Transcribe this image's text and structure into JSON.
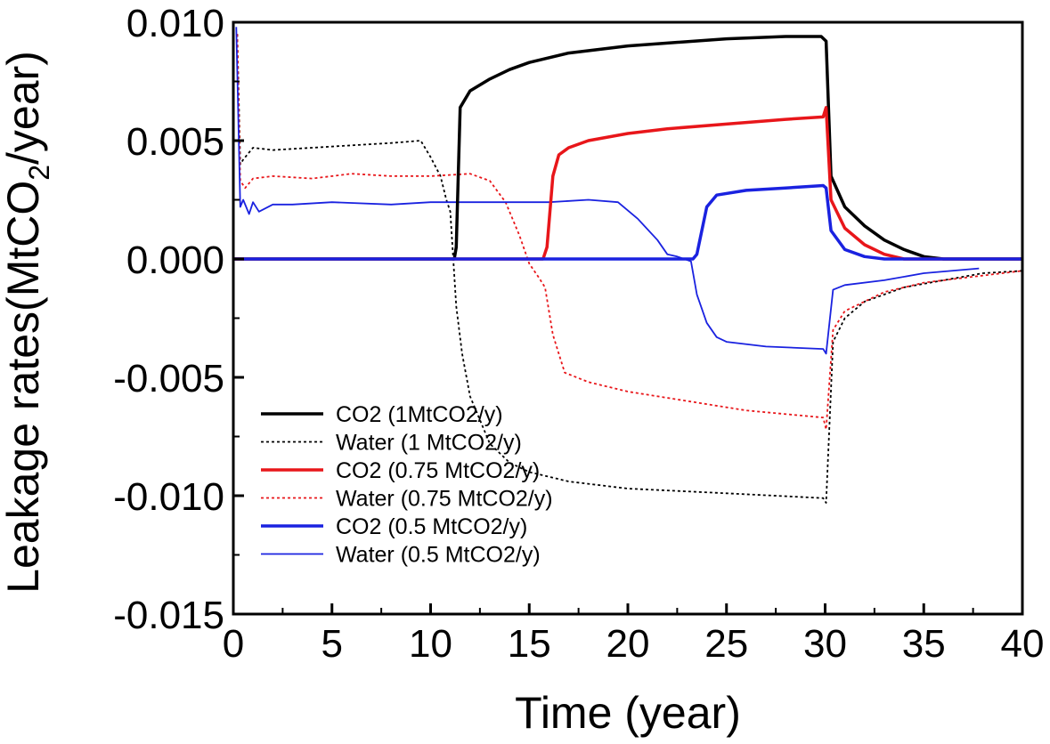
{
  "chart_data": {
    "type": "line",
    "title": "",
    "xlabel": "Time (year)",
    "ylabel_main": "Leakage rates(MtCO",
    "ylabel_sub": "2",
    "ylabel_tail": "/year)",
    "xlim": [
      0,
      40
    ],
    "ylim": [
      -0.015,
      0.01
    ],
    "x_ticks": [
      0,
      5,
      10,
      15,
      20,
      25,
      30,
      35,
      40
    ],
    "x_tick_labels": [
      "0",
      "5",
      "10",
      "15",
      "20",
      "25",
      "30",
      "35",
      "40"
    ],
    "y_ticks": [
      -0.015,
      -0.01,
      -0.005,
      0,
      0.005,
      0.01
    ],
    "y_tick_labels": [
      "-0.015",
      "-0.010",
      "-0.005",
      "0.000",
      "0.005",
      "0.010"
    ],
    "grid": false,
    "legend_position": "bottom-left",
    "series": [
      {
        "name": "CO2 (1MtCO2/y)",
        "color": "#000000",
        "style": "solid",
        "weight": "thick",
        "x": [
          0,
          11.2,
          11.3,
          11.5,
          12,
          13,
          14,
          15,
          17,
          20,
          25,
          28,
          29.8,
          30.05,
          30.3,
          31,
          32,
          33,
          34,
          35,
          36,
          40
        ],
        "y": [
          0,
          0,
          0.0005,
          0.0064,
          0.0071,
          0.0076,
          0.008,
          0.0083,
          0.0087,
          0.009,
          0.0093,
          0.0094,
          0.0094,
          0.0092,
          0.0035,
          0.0022,
          0.0014,
          0.0008,
          0.0004,
          0.0001,
          0,
          0
        ]
      },
      {
        "name": "Water (1 MtCO2/y)",
        "color": "#000000",
        "style": "dotted",
        "weight": "thin",
        "x": [
          0.2,
          0.35,
          0.5,
          1,
          2,
          4,
          6,
          8,
          9.5,
          10,
          10.5,
          10.8,
          11,
          11.3,
          11.6,
          12,
          12.5,
          13,
          14,
          15,
          17,
          20,
          25,
          29.9,
          30.05,
          30.4,
          31,
          32,
          34,
          36,
          38,
          40
        ],
        "y": [
          0.0095,
          0.004,
          0.0042,
          0.0047,
          0.0046,
          0.0047,
          0.0048,
          0.0049,
          0.005,
          0.0043,
          0.0035,
          0.0025,
          0.002,
          -0.002,
          -0.004,
          -0.0058,
          -0.0068,
          -0.0078,
          -0.0086,
          -0.009,
          -0.0094,
          -0.0097,
          -0.0099,
          -0.0101,
          -0.0103,
          -0.0035,
          -0.0025,
          -0.0018,
          -0.0012,
          -0.0009,
          -0.0006,
          -0.0005
        ]
      },
      {
        "name": "CO2 (0.75 MtCO2/y)",
        "color": "#e8161a",
        "style": "solid",
        "weight": "thick",
        "x": [
          0,
          15.7,
          15.9,
          16.2,
          16.5,
          17,
          18,
          20,
          22,
          25,
          28,
          29.9,
          30.05,
          30.3,
          31,
          32,
          33,
          34,
          40
        ],
        "y": [
          0,
          0,
          0.0005,
          0.0035,
          0.0044,
          0.0047,
          0.005,
          0.0053,
          0.0055,
          0.0057,
          0.0059,
          0.006,
          0.0064,
          0.0025,
          0.0013,
          0.0006,
          0.0002,
          0,
          0
        ]
      },
      {
        "name": "Water (0.75 MtCO2/y)",
        "color": "#e8161a",
        "style": "dotted",
        "weight": "thin",
        "x": [
          0.2,
          0.35,
          0.6,
          1,
          2,
          4,
          6,
          8,
          10,
          12,
          13,
          13.8,
          14.5,
          15,
          15.5,
          15.8,
          16.2,
          16.8,
          18,
          20,
          23,
          26,
          29.9,
          30.05,
          30.4,
          31,
          33,
          35,
          38,
          40
        ],
        "y": [
          0.0095,
          0.0033,
          0.003,
          0.0034,
          0.0035,
          0.0034,
          0.0036,
          0.0035,
          0.0035,
          0.0036,
          0.0033,
          0.0024,
          0.001,
          -0.0002,
          -0.0008,
          -0.0012,
          -0.0032,
          -0.0048,
          -0.0052,
          -0.0056,
          -0.006,
          -0.0064,
          -0.0067,
          -0.0072,
          -0.003,
          -0.0022,
          -0.0014,
          -0.001,
          -0.0007,
          -0.0005
        ]
      },
      {
        "name": "CO2 (0.5 MtCO2/y)",
        "color": "#1a22e0",
        "style": "solid",
        "weight": "thick",
        "x": [
          0,
          23.3,
          23.5,
          24,
          24.5,
          26,
          28,
          29.9,
          30.05,
          30.3,
          31,
          32,
          33,
          40
        ],
        "y": [
          0,
          0,
          0.0002,
          0.0022,
          0.0027,
          0.0029,
          0.003,
          0.0031,
          0.003,
          0.0012,
          0.0004,
          0.0001,
          0,
          0
        ]
      },
      {
        "name": "Water (0.5 MtCO2/y)",
        "color": "#1a22e0",
        "style": "solid",
        "weight": "thin",
        "x": [
          0.15,
          0.35,
          0.5,
          0.8,
          1,
          1.3,
          2,
          3,
          5,
          8,
          10,
          12,
          14,
          16,
          18,
          19.5,
          20.5,
          21.5,
          22,
          22.5,
          23.2,
          23.5,
          24,
          24.5,
          25,
          27,
          29.9,
          30.05,
          30.4,
          31,
          33,
          35,
          37.8
        ],
        "y": [
          0.0098,
          0.0022,
          0.0025,
          0.0019,
          0.0024,
          0.002,
          0.0023,
          0.0023,
          0.0024,
          0.0023,
          0.0024,
          0.0024,
          0.0024,
          0.0024,
          0.0025,
          0.0024,
          0.0017,
          0.0008,
          0.0002,
          0.0001,
          -0.0001,
          -0.0015,
          -0.0027,
          -0.0033,
          -0.0035,
          -0.0037,
          -0.0038,
          -0.004,
          -0.0013,
          -0.0011,
          -0.0009,
          -0.0006,
          -0.0004
        ]
      }
    ]
  }
}
